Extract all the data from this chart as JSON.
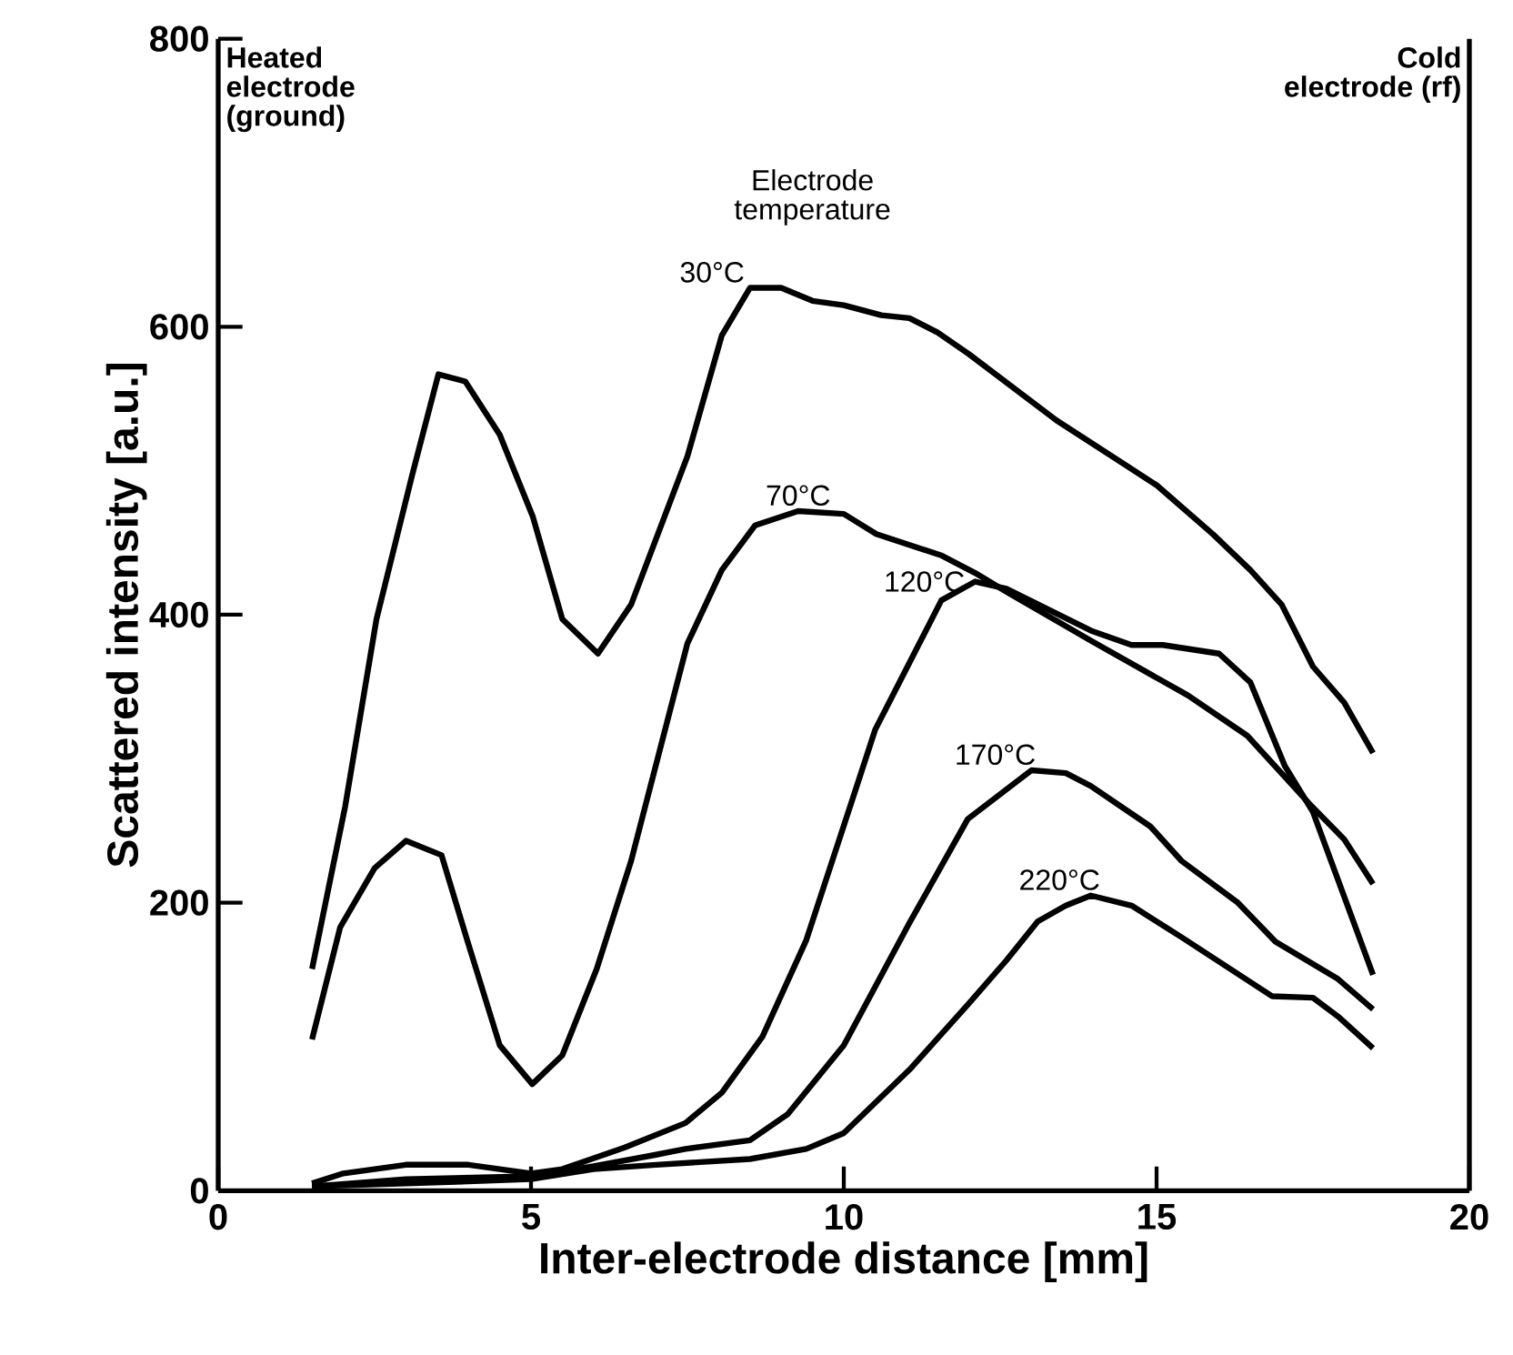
{
  "chart_data": {
    "type": "line",
    "xlabel": "Inter-electrode distance [mm]",
    "ylabel": "Scattered intensity [a.u.]",
    "xlim": [
      0,
      20
    ],
    "xticks": [
      0,
      5,
      10,
      15,
      20
    ],
    "ylim": [
      0,
      800
    ],
    "yticks": [
      0,
      200,
      400,
      600,
      800
    ],
    "grid": false,
    "legend": false,
    "marker": "none",
    "line_style": "solid",
    "annotations": [
      "Heated electrode (ground)",
      "Cold electrode (rf)",
      "Electrode temperature"
    ],
    "series": [
      {
        "name": "30°C",
        "color": "#000000",
        "x": [
          1.5,
          2.03,
          2.53,
          3.1,
          3.52,
          3.95,
          4.5,
          5.03,
          5.5,
          6.07,
          6.6,
          7.5,
          8.05,
          8.5,
          9.0,
          9.5,
          10.0,
          10.6,
          11.05,
          11.5,
          12.0,
          13.4,
          15.0,
          15.9,
          16.5,
          17.0,
          17.5,
          18.0,
          18.46
        ],
        "values": [
          154,
          267,
          397,
          497,
          567,
          562,
          525,
          468,
          397,
          373,
          407,
          510,
          594,
          627,
          627,
          618,
          615,
          608,
          606,
          596,
          581,
          535,
          490,
          456,
          431,
          407,
          364,
          339,
          304
        ]
      },
      {
        "name": "70°C",
        "color": "#000000",
        "x": [
          1.5,
          1.95,
          2.5,
          3.0,
          3.57,
          3.98,
          4.5,
          5.02,
          5.5,
          6.05,
          6.6,
          7.5,
          8.05,
          8.58,
          9.27,
          10.0,
          10.52,
          11.57,
          12.1,
          12.6,
          13.95,
          15.5,
          16.45,
          17.48,
          18.0,
          18.46
        ],
        "values": [
          105,
          183,
          224,
          243,
          233,
          174,
          101,
          74,
          94,
          154,
          229,
          380,
          431,
          462,
          472,
          470,
          456,
          441,
          429,
          416,
          382,
          344,
          316,
          267,
          244,
          213
        ]
      },
      {
        "name": "120°C",
        "color": "#000000",
        "x": [
          1.5,
          2.0,
          3.0,
          4.0,
          5.0,
          5.5,
          6.5,
          7.47,
          8.05,
          8.7,
          9.4,
          10.2,
          10.5,
          11.56,
          12.1,
          12.6,
          13.95,
          14.6,
          15.1,
          16.0,
          16.5,
          17.05,
          17.5,
          18.46
        ],
        "values": [
          5,
          12,
          18,
          18,
          12,
          15,
          30,
          47,
          68,
          107,
          174,
          280,
          320,
          410,
          423,
          418,
          389,
          379,
          379,
          373,
          353,
          295,
          263,
          150
        ]
      },
      {
        "name": "170°C",
        "color": "#000000",
        "x": [
          1.5,
          3.0,
          5.0,
          6.0,
          7.0,
          7.47,
          8.5,
          9.1,
          10.0,
          11.05,
          11.98,
          13.0,
          13.55,
          13.95,
          14.9,
          15.4,
          16.3,
          16.9,
          17.9,
          18.46
        ],
        "values": [
          3,
          8,
          10,
          17,
          25,
          29,
          35,
          53,
          101,
          186,
          258,
          292,
          290,
          281,
          253,
          229,
          200,
          173,
          147,
          126
        ]
      },
      {
        "name": "220°C",
        "color": "#000000",
        "x": [
          1.5,
          3.0,
          5.0,
          6.0,
          7.0,
          8.5,
          9.4,
          10.0,
          11.05,
          12.0,
          12.6,
          13.1,
          13.55,
          13.95,
          14.6,
          15.4,
          16.85,
          17.5,
          17.9,
          18.46
        ],
        "values": [
          3,
          5,
          8,
          15,
          18,
          22,
          29,
          40,
          84,
          130,
          160,
          187,
          198,
          205,
          198,
          176,
          135,
          134,
          121,
          99
        ]
      }
    ]
  }
}
